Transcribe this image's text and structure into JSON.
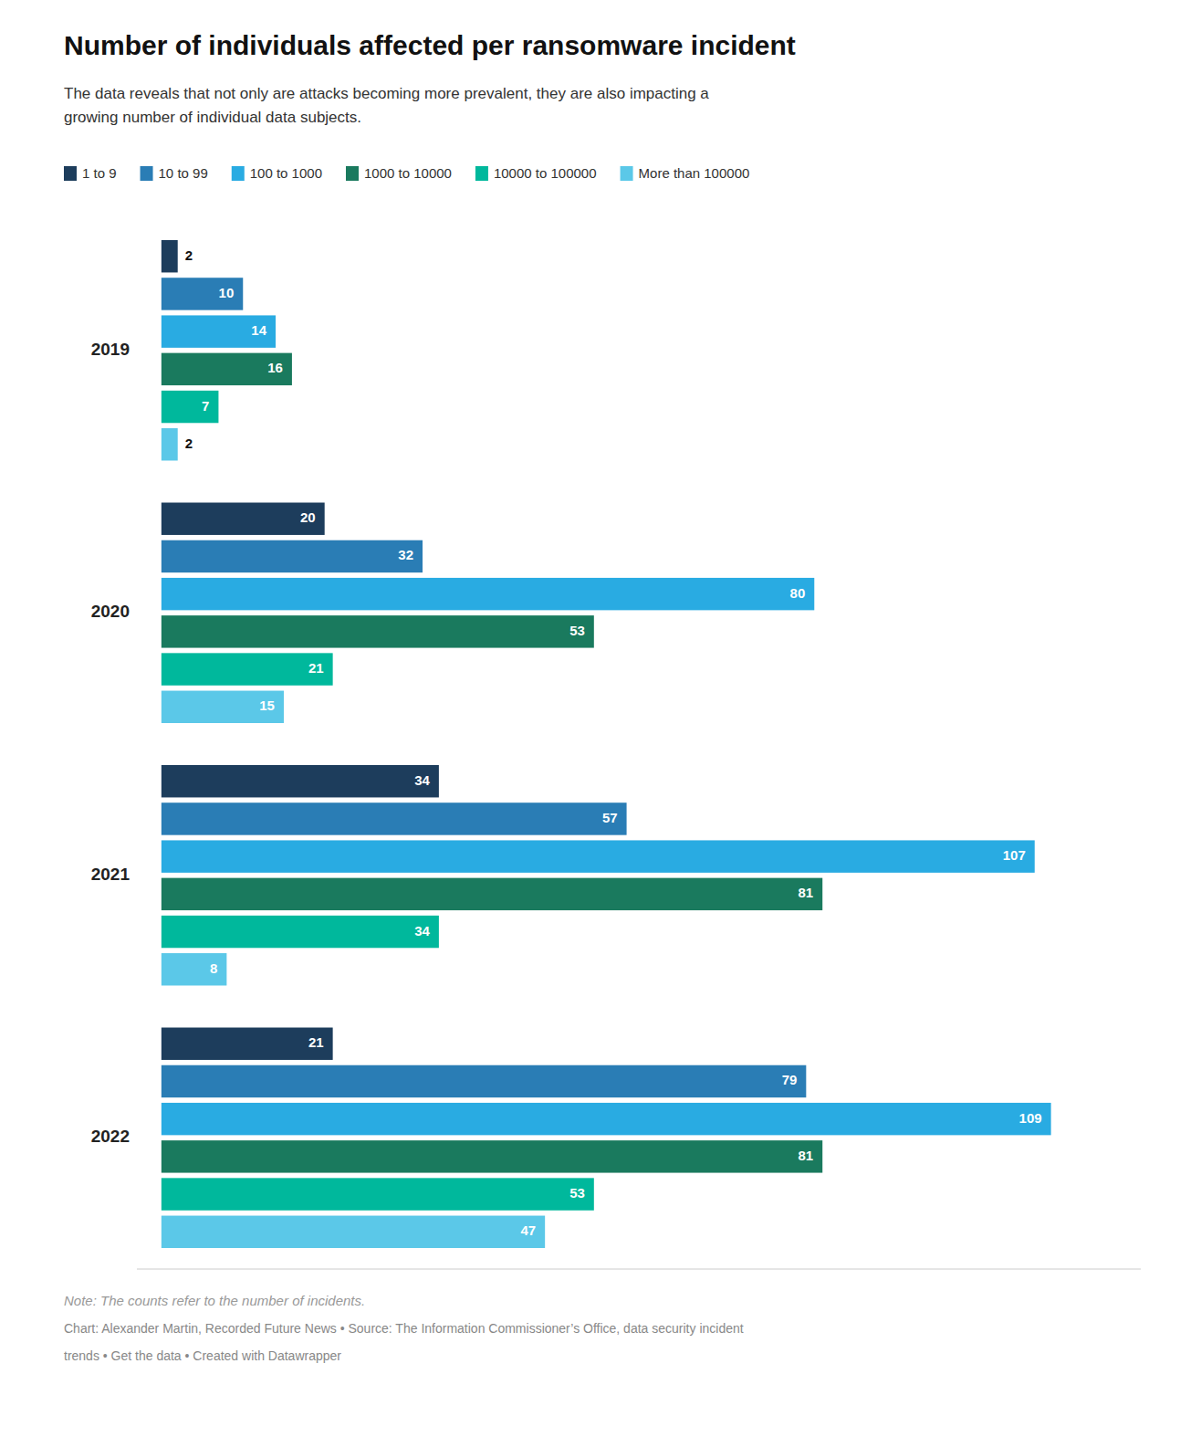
{
  "chart_data": {
    "type": "bar",
    "orientation": "horizontal",
    "title": "Number of individuals affected per ransomware incident",
    "subtitle": "The data reveals that not only are attacks becoming more prevalent, they are also impacting a\ngrowing number of individual data subjects.",
    "annotations": [
      "Note: The counts refer to the number of incidents.",
      "Chart: Alexander Martin, Recorded Future News • Source: The Information Commissioner’s Office, data security incident",
      "trends • Get the data • Created with Datawrapper"
    ],
    "categories": [
      "2019",
      "2020",
      "2021",
      "2022"
    ],
    "series": [
      {
        "name": "1 to 9",
        "color": "#1d3d5c",
        "values": [
          2,
          20,
          34,
          21
        ]
      },
      {
        "name": "10 to 99",
        "color": "#2a7db5",
        "values": [
          10,
          32,
          57,
          79
        ]
      },
      {
        "name": "100 to 1000",
        "color": "#29abe2",
        "values": [
          14,
          80,
          107,
          109
        ]
      },
      {
        "name": "1000 to 10000",
        "color": "#1a7a5e",
        "values": [
          16,
          53,
          81,
          81
        ]
      },
      {
        "name": "10000 to 100000",
        "color": "#00b89c",
        "values": [
          7,
          21,
          34,
          53
        ]
      },
      {
        "name": "More than 100000",
        "color": "#5bc8e8",
        "values": [
          2,
          15,
          8,
          47
        ]
      }
    ],
    "xlim": [
      -3,
      120
    ],
    "data_labels": true,
    "legend": "top",
    "tick_labels": "y",
    "grid": false
  }
}
